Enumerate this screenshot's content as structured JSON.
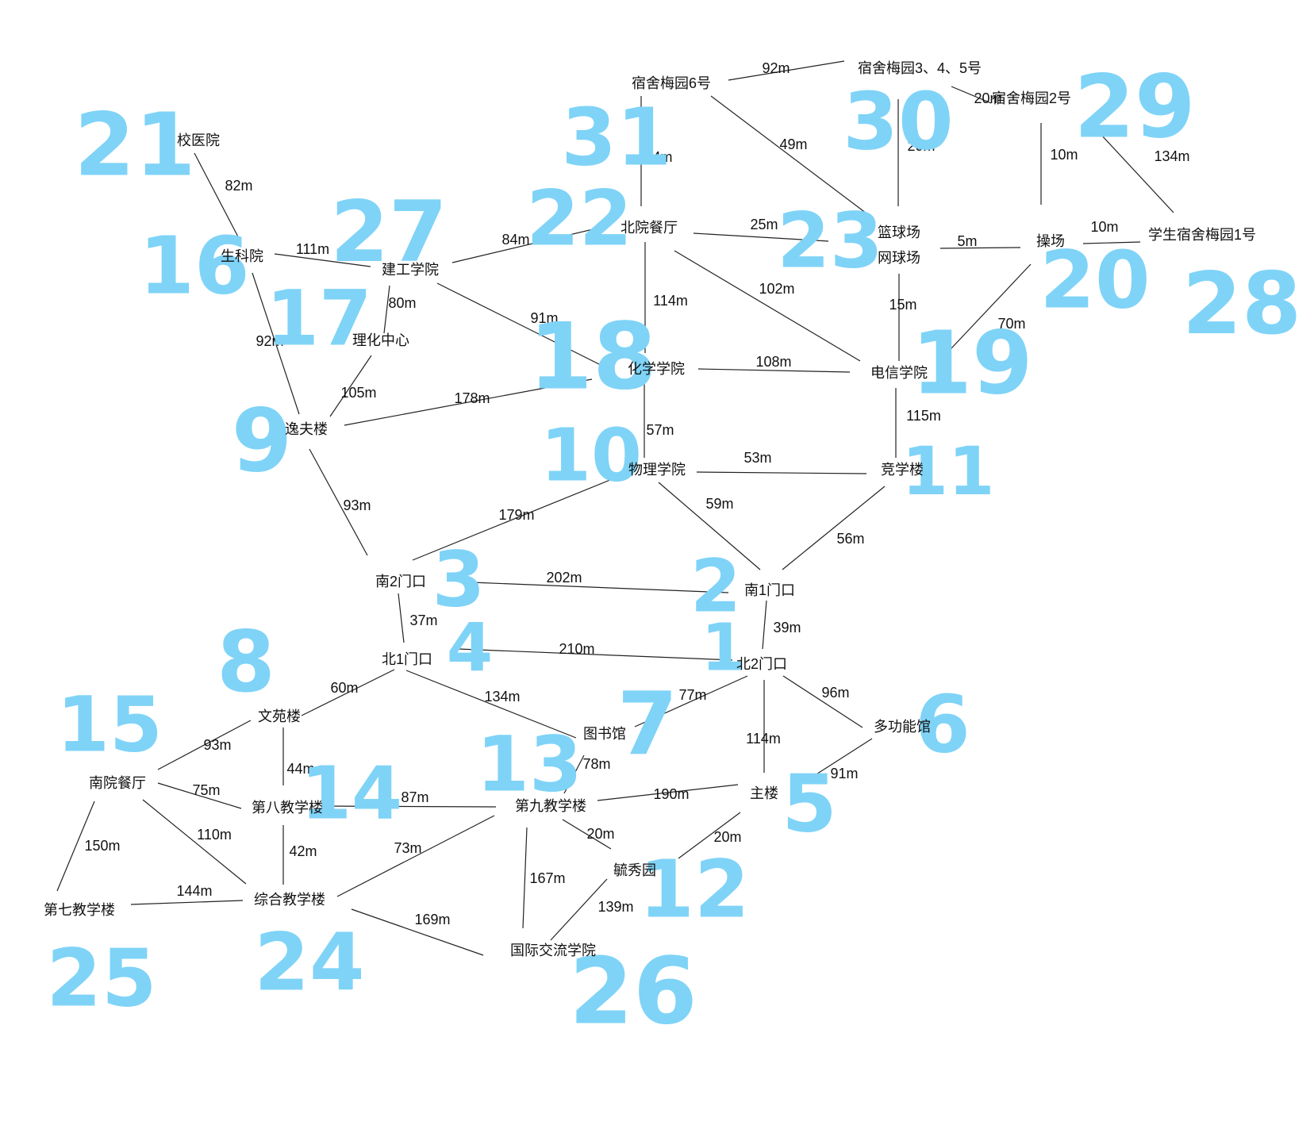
{
  "diagram": {
    "nodes": [
      {
        "id": "n1",
        "label": "北2门口",
        "num": "1"
      },
      {
        "id": "n2",
        "label": "南1门口",
        "num": "2"
      },
      {
        "id": "n3",
        "label": "南2门口",
        "num": "3"
      },
      {
        "id": "n4",
        "label": "北1门口",
        "num": "4"
      },
      {
        "id": "n5",
        "label": "主楼",
        "num": "5"
      },
      {
        "id": "n6",
        "label": "多功能馆",
        "num": "6"
      },
      {
        "id": "n7",
        "label": "图书馆",
        "num": "7"
      },
      {
        "id": "n8",
        "label": "文苑楼",
        "num": "8"
      },
      {
        "id": "n9",
        "label": "逸夫楼",
        "num": "9"
      },
      {
        "id": "n10",
        "label": "物理学院",
        "num": "10"
      },
      {
        "id": "n11",
        "label": "竞学楼",
        "num": "11"
      },
      {
        "id": "n12",
        "label": "毓秀园",
        "num": "12"
      },
      {
        "id": "n13",
        "label": "第九教学楼",
        "num": "13"
      },
      {
        "id": "n14",
        "label": "第八教学楼",
        "num": "14"
      },
      {
        "id": "n15",
        "label": "南院餐厅",
        "num": "15"
      },
      {
        "id": "n16",
        "label": "生科院",
        "num": "16"
      },
      {
        "id": "n17",
        "label": "理化中心",
        "num": "17"
      },
      {
        "id": "n18",
        "label": "化学学院",
        "num": "18"
      },
      {
        "id": "n19",
        "label": "电信学院",
        "num": "19"
      },
      {
        "id": "n20",
        "label": "操场",
        "num": "20"
      },
      {
        "id": "n21",
        "label": "校医院",
        "num": "21"
      },
      {
        "id": "n22",
        "label": "北院餐厅",
        "num": "22"
      },
      {
        "id": "n23a",
        "label": "篮球场",
        "num": "23"
      },
      {
        "id": "n23b",
        "label": "网球场",
        "num": ""
      },
      {
        "id": "n24",
        "label": "综合教学楼",
        "num": "24"
      },
      {
        "id": "n25",
        "label": "第七教学楼",
        "num": "25"
      },
      {
        "id": "n26",
        "label": "国际交流学院",
        "num": "26"
      },
      {
        "id": "n27",
        "label": "建工学院",
        "num": "27"
      },
      {
        "id": "n28",
        "label": "学生宿舍梅园1号",
        "num": "28"
      },
      {
        "id": "n29",
        "label": "宿舍梅园2号",
        "num": "29"
      },
      {
        "id": "n30",
        "label": "宿舍梅园3、4、5号",
        "num": "30"
      },
      {
        "id": "n31",
        "label": "宿舍梅园6号",
        "num": "31"
      }
    ],
    "edges": [
      {
        "from": "n31",
        "to": "n30",
        "dist": "92m"
      },
      {
        "from": "n30",
        "to": "n29",
        "dist": "20m"
      },
      {
        "from": "n31",
        "to": "n22",
        "dist": "44m"
      },
      {
        "from": "n31",
        "to": "n23a",
        "dist": "49m"
      },
      {
        "from": "n30",
        "to": "n23a",
        "dist": "20m"
      },
      {
        "from": "n29",
        "to": "n20",
        "dist": "10m"
      },
      {
        "from": "n29",
        "to": "n28",
        "dist": "134m"
      },
      {
        "from": "n21",
        "to": "n16",
        "dist": "82m"
      },
      {
        "from": "n16",
        "to": "n27",
        "dist": "111m"
      },
      {
        "from": "n27",
        "to": "n22",
        "dist": "84m"
      },
      {
        "from": "n22",
        "to": "n23a",
        "dist": "25m"
      },
      {
        "from": "n23b",
        "to": "n20",
        "dist": "5m"
      },
      {
        "from": "n20",
        "to": "n28",
        "dist": "10m"
      },
      {
        "from": "n27",
        "to": "n17",
        "dist": "80m"
      },
      {
        "from": "n27",
        "to": "n18",
        "dist": "91m"
      },
      {
        "from": "n22",
        "to": "n18",
        "dist": "114m"
      },
      {
        "from": "n22",
        "to": "n19",
        "dist": "102m"
      },
      {
        "from": "n23b",
        "to": "n19",
        "dist": "15m"
      },
      {
        "from": "n20",
        "to": "n19",
        "dist": "70m"
      },
      {
        "from": "n16",
        "to": "n9",
        "dist": "92m"
      },
      {
        "from": "n17",
        "to": "n9",
        "dist": "105m"
      },
      {
        "from": "n9",
        "to": "n18",
        "dist": "178m"
      },
      {
        "from": "n18",
        "to": "n19",
        "dist": "108m"
      },
      {
        "from": "n18",
        "to": "n10",
        "dist": "57m"
      },
      {
        "from": "n19",
        "to": "n11",
        "dist": "115m"
      },
      {
        "from": "n10",
        "to": "n11",
        "dist": "53m"
      },
      {
        "from": "n9",
        "to": "n3",
        "dist": "93m"
      },
      {
        "from": "n10",
        "to": "n3",
        "dist": "179m"
      },
      {
        "from": "n10",
        "to": "n2",
        "dist": "59m"
      },
      {
        "from": "n11",
        "to": "n2",
        "dist": "56m"
      },
      {
        "from": "n3",
        "to": "n2",
        "dist": "202m"
      },
      {
        "from": "n3",
        "to": "n4",
        "dist": "37m"
      },
      {
        "from": "n2",
        "to": "n1",
        "dist": "39m"
      },
      {
        "from": "n4",
        "to": "n1",
        "dist": "210m"
      },
      {
        "from": "n4",
        "to": "n8",
        "dist": "60m"
      },
      {
        "from": "n4",
        "to": "n7",
        "dist": "134m"
      },
      {
        "from": "n1",
        "to": "n7",
        "dist": "77m"
      },
      {
        "from": "n1",
        "to": "n6",
        "dist": "96m"
      },
      {
        "from": "n1",
        "to": "n5",
        "dist": "114m"
      },
      {
        "from": "n6",
        "to": "n5",
        "dist": "91m"
      },
      {
        "from": "n8",
        "to": "n15",
        "dist": "93m"
      },
      {
        "from": "n8",
        "to": "n14",
        "dist": "44m"
      },
      {
        "from": "n15",
        "to": "n14",
        "dist": "75m"
      },
      {
        "from": "n7",
        "to": "n13",
        "dist": "78m"
      },
      {
        "from": "n14",
        "to": "n13",
        "dist": "87m"
      },
      {
        "from": "n13",
        "to": "n5",
        "dist": "190m"
      },
      {
        "from": "n13",
        "to": "n12",
        "dist": "20m"
      },
      {
        "from": "n5",
        "to": "n12",
        "dist": "20m"
      },
      {
        "from": "n15",
        "to": "n24",
        "dist": "110m"
      },
      {
        "from": "n14",
        "to": "n24",
        "dist": "42m"
      },
      {
        "from": "n15",
        "to": "n25",
        "dist": "150m"
      },
      {
        "from": "n25",
        "to": "n24",
        "dist": "144m"
      },
      {
        "from": "n24",
        "to": "n13",
        "dist": "73m"
      },
      {
        "from": "n13",
        "to": "n26",
        "dist": "167m"
      },
      {
        "from": "n12",
        "to": "n26",
        "dist": "139m"
      },
      {
        "from": "n24",
        "to": "n26",
        "dist": "169m"
      }
    ]
  },
  "colors": {
    "line": "#222222",
    "text": "#111111",
    "marker": "#7fd3f7"
  }
}
